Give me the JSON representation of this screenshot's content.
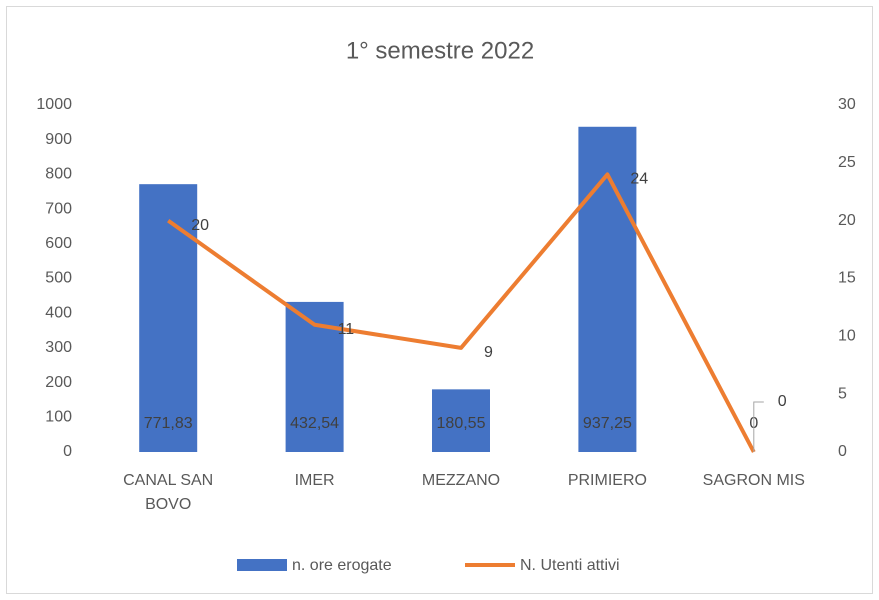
{
  "chart_data": {
    "type": "bar_line",
    "title": "1° semestre 2022",
    "categories": [
      "CANAL SAN BOVO",
      "IMER",
      "MEZZANO",
      "PRIMIERO",
      "SAGRON MIS"
    ],
    "series": [
      {
        "name": "n. ore erogate",
        "type": "bar",
        "color": "#4472c4",
        "values": [
          771.83,
          432.54,
          180.55,
          937.25,
          0
        ],
        "value_labels": [
          "771,83",
          "432,54",
          "180,55",
          "937,25",
          "0"
        ]
      },
      {
        "name": "N. Utenti attivi",
        "type": "line",
        "axis": "y2",
        "color": "#ed7d31",
        "values": [
          20,
          11,
          9,
          24,
          0
        ]
      }
    ],
    "ylim": [
      0,
      1000
    ],
    "yticks": [
      0,
      100,
      200,
      300,
      400,
      500,
      600,
      700,
      800,
      900,
      1000
    ],
    "y2lim": [
      0,
      30
    ],
    "y2ticks": [
      0,
      5,
      10,
      15,
      20,
      25,
      30
    ],
    "grid": false,
    "legend": "bottom"
  }
}
